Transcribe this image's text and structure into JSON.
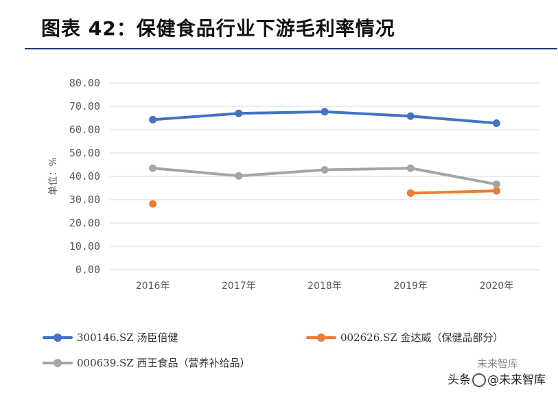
{
  "title": "图表 42：保健食品行业下游毛利率情况",
  "watermark": {
    "prefix": "头条",
    "text": "@未来智库",
    "faint": "未来智库"
  },
  "chart_data": {
    "type": "line",
    "categories": [
      "2016年",
      "2017年",
      "2018年",
      "2019年",
      "2020年"
    ],
    "ylabel": "单位：%",
    "ylim": [
      0,
      80
    ],
    "yticks": [
      "0.00",
      "10.00",
      "20.00",
      "30.00",
      "40.00",
      "50.00",
      "60.00",
      "70.00",
      "80.00"
    ],
    "ytick_values": [
      0,
      10,
      20,
      30,
      40,
      50,
      60,
      70,
      80
    ],
    "grid": true,
    "series": [
      {
        "name": "300146.SZ 汤臣倍健",
        "color": "#4472c4",
        "values": [
          64.3,
          67.0,
          67.7,
          65.8,
          62.8
        ]
      },
      {
        "name": "002626.SZ 金达威（保健品部分）",
        "color": "#ed7d31",
        "values": [
          28.2,
          null,
          null,
          32.8,
          33.8
        ]
      },
      {
        "name": "000639.SZ 西王食品（营养补给品）",
        "color": "#a5a5a5",
        "values": [
          43.5,
          40.2,
          42.8,
          43.5,
          36.6
        ]
      }
    ]
  }
}
